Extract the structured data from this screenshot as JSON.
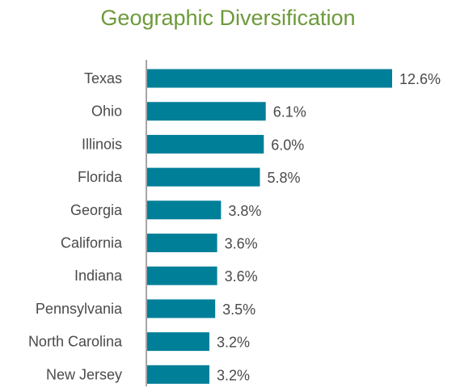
{
  "chart_data": {
    "type": "bar",
    "orientation": "horizontal",
    "title": "Geographic Diversification",
    "categories": [
      "Texas",
      "Ohio",
      "Illinois",
      "Florida",
      "Georgia",
      "California",
      "Indiana",
      "Pennsylvania",
      "North Carolina",
      "New Jersey"
    ],
    "values": [
      12.6,
      6.1,
      6.0,
      5.8,
      3.8,
      3.6,
      3.6,
      3.5,
      3.2,
      3.2
    ],
    "value_labels": [
      "12.6%",
      "6.1%",
      "6.0%",
      "5.8%",
      "3.8%",
      "3.6%",
      "3.6%",
      "3.5%",
      "3.2%",
      "3.2%"
    ],
    "xlabel": "",
    "ylabel": "",
    "xlim": [
      0,
      12.6
    ],
    "grid": false,
    "legend": "none",
    "bar_color": "#007f99",
    "title_color": "#6d9a3a",
    "text_color": "#4a4a4a",
    "axis_color": "#a6a6a6"
  }
}
